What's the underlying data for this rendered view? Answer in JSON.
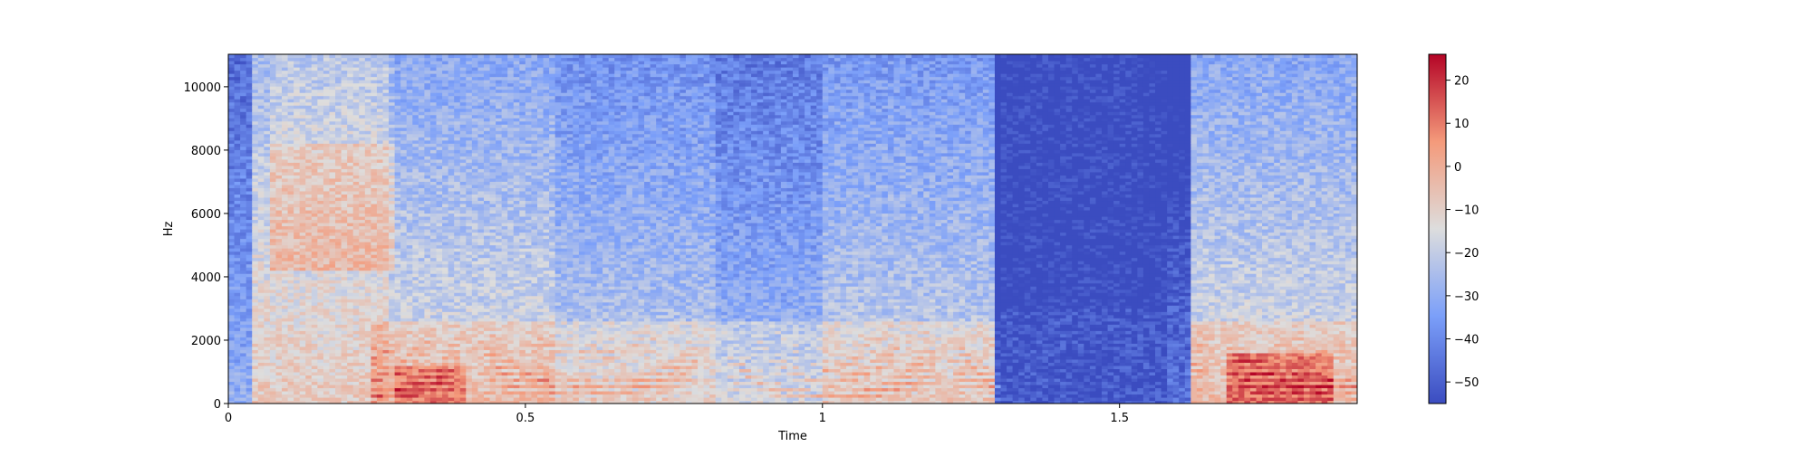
{
  "chart_data": [
    {
      "type": "heatmap",
      "subtype": "spectrogram",
      "title": "",
      "xlabel": "Time",
      "ylabel": "Hz",
      "xlim": [
        0,
        1.9
      ],
      "ylim": [
        0,
        11025
      ],
      "x_ticks": [
        0,
        0.5,
        1,
        1.5
      ],
      "x_tick_labels": [
        "0",
        "0.5",
        "1",
        "1.5"
      ],
      "y_ticks": [
        0,
        2000,
        4000,
        6000,
        8000,
        10000
      ],
      "y_tick_labels": [
        "0",
        "2000",
        "4000",
        "6000",
        "8000",
        "10000"
      ],
      "colormap": "coolwarm",
      "color_low": "#3b4cc0",
      "color_mid": "#dddddd",
      "color_high": "#b40426",
      "grid": false,
      "energy_regions_approx": [
        {
          "t": [
            0.07,
            0.28
          ],
          "f": [
            4500,
            8000
          ],
          "db": -5
        },
        {
          "t": [
            0.07,
            0.28
          ],
          "f": [
            8500,
            10500
          ],
          "db": -12
        },
        {
          "t": [
            0.25,
            0.42
          ],
          "f": [
            200,
            1500
          ],
          "db": 12
        },
        {
          "t": [
            0.28,
            0.55
          ],
          "f": [
            200,
            900
          ],
          "db": 18
        },
        {
          "t": [
            0.55,
            0.95
          ],
          "f": [
            0,
            600
          ],
          "db": 5
        },
        {
          "t": [
            1.0,
            1.3
          ],
          "f": [
            200,
            2000
          ],
          "db": 0
        },
        {
          "t": [
            1.3,
            1.58
          ],
          "f": [
            0,
            11025
          ],
          "db": -55
        },
        {
          "t": [
            1.62,
            1.9
          ],
          "f": [
            200,
            2500
          ],
          "db": 10
        },
        {
          "t": [
            1.7,
            1.85
          ],
          "f": [
            600,
            1200
          ],
          "db": 20
        }
      ]
    },
    {
      "type": "colorbar",
      "colormap": "coolwarm",
      "range": [
        -55,
        26
      ],
      "ticks": [
        -50,
        -40,
        -30,
        -20,
        -10,
        0,
        10,
        20
      ],
      "tick_labels": [
        "−50",
        "−40",
        "−30",
        "−20",
        "−10",
        "0",
        "10",
        "20"
      ]
    }
  ]
}
